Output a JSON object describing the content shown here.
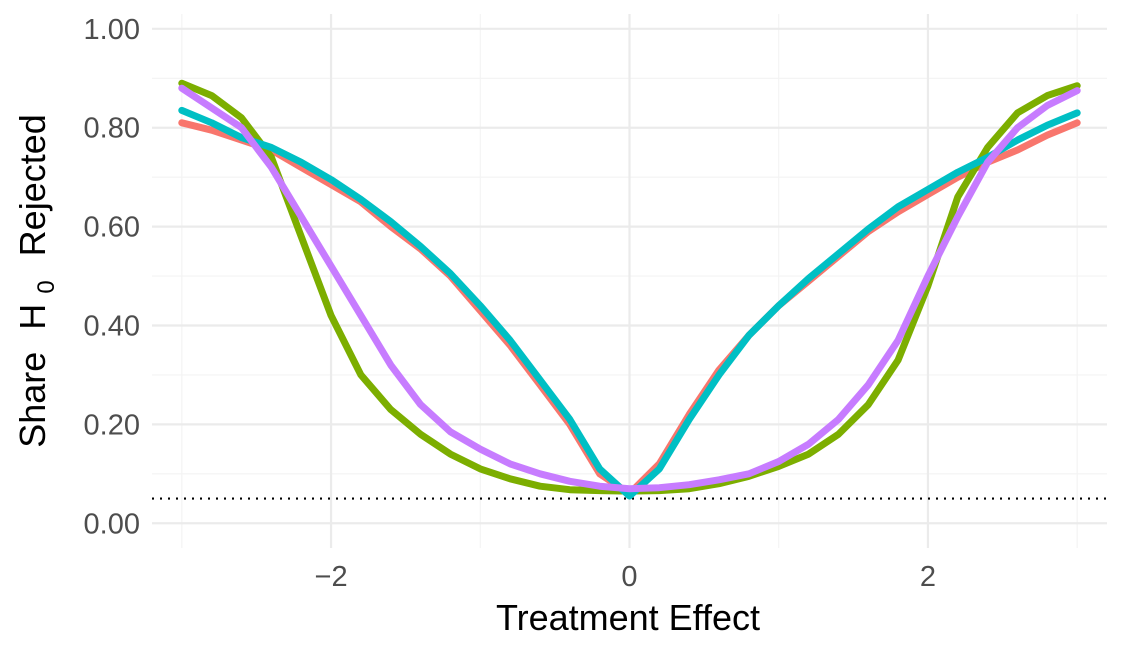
{
  "chart_data": {
    "type": "line",
    "xlabel": "Treatment Effect",
    "ylabel": {
      "prefix": "Share",
      "symbol": "H",
      "subscript": "0",
      "suffix": "Rejected"
    },
    "xlim": [
      -3.2,
      3.2
    ],
    "ylim": [
      -0.05,
      1.03
    ],
    "x_ticks": [
      -2,
      0,
      2
    ],
    "x_tick_labels": [
      "−2",
      "0",
      "2"
    ],
    "y_ticks": [
      0.0,
      0.2,
      0.4,
      0.6,
      0.8,
      1.0
    ],
    "y_tick_labels": [
      "0.00",
      "0.20",
      "0.40",
      "0.60",
      "0.80",
      "1.00"
    ],
    "grid": true,
    "legend": "none",
    "reference_line": {
      "y": 0.05,
      "style": "dotted",
      "color": "#000000"
    },
    "x": [
      -3.0,
      -2.8,
      -2.6,
      -2.4,
      -2.2,
      -2.0,
      -1.8,
      -1.6,
      -1.4,
      -1.2,
      -1.0,
      -0.8,
      -0.6,
      -0.4,
      -0.2,
      0.0,
      0.2,
      0.4,
      0.6,
      0.8,
      1.0,
      1.2,
      1.4,
      1.6,
      1.8,
      2.0,
      2.2,
      2.4,
      2.6,
      2.8,
      3.0
    ],
    "series": [
      {
        "color": "#F8766D",
        "values": [
          0.81,
          0.795,
          0.775,
          0.755,
          0.72,
          0.685,
          0.65,
          0.6,
          0.555,
          0.5,
          0.43,
          0.36,
          0.28,
          0.2,
          0.1,
          0.06,
          0.12,
          0.22,
          0.31,
          0.38,
          0.44,
          0.49,
          0.54,
          0.59,
          0.63,
          0.665,
          0.7,
          0.73,
          0.755,
          0.785,
          0.81
        ]
      },
      {
        "color": "#7CAE00",
        "values": [
          0.89,
          0.865,
          0.82,
          0.74,
          0.58,
          0.42,
          0.3,
          0.23,
          0.18,
          0.14,
          0.11,
          0.09,
          0.075,
          0.068,
          0.066,
          0.065,
          0.066,
          0.07,
          0.08,
          0.095,
          0.115,
          0.14,
          0.18,
          0.24,
          0.33,
          0.48,
          0.66,
          0.76,
          0.83,
          0.865,
          0.885
        ]
      },
      {
        "color": "#00BFC4",
        "values": [
          0.835,
          0.81,
          0.78,
          0.76,
          0.73,
          0.695,
          0.655,
          0.61,
          0.56,
          0.505,
          0.44,
          0.37,
          0.29,
          0.21,
          0.11,
          0.055,
          0.11,
          0.21,
          0.3,
          0.38,
          0.44,
          0.495,
          0.545,
          0.595,
          0.64,
          0.675,
          0.71,
          0.74,
          0.775,
          0.805,
          0.83
        ]
      },
      {
        "color": "#C77CFF",
        "values": [
          0.88,
          0.84,
          0.8,
          0.72,
          0.62,
          0.52,
          0.42,
          0.32,
          0.24,
          0.185,
          0.15,
          0.12,
          0.1,
          0.085,
          0.075,
          0.07,
          0.072,
          0.078,
          0.088,
          0.1,
          0.125,
          0.16,
          0.21,
          0.28,
          0.37,
          0.5,
          0.62,
          0.73,
          0.8,
          0.845,
          0.875
        ]
      }
    ]
  }
}
